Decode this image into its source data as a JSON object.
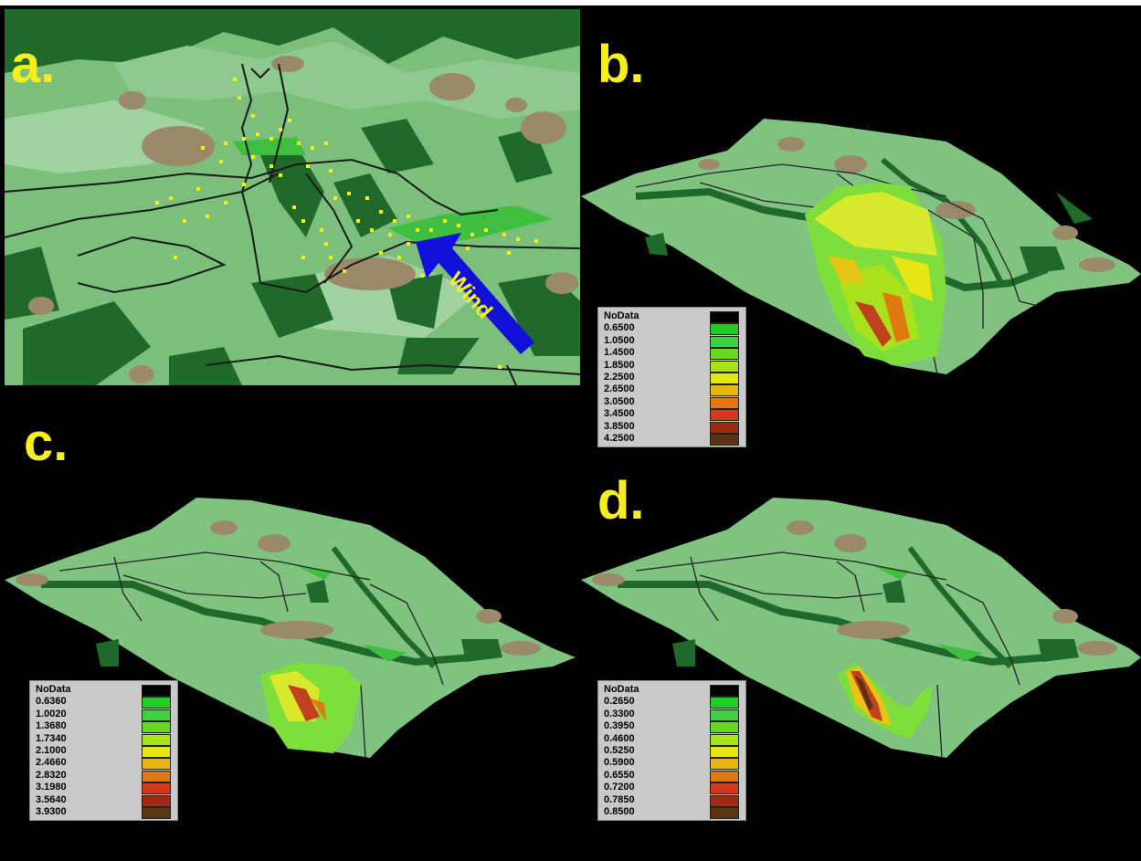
{
  "panels": {
    "a": {
      "label": "a."
    },
    "b": {
      "label": "b."
    },
    "c": {
      "label": "c."
    },
    "d": {
      "label": "d."
    }
  },
  "wind": {
    "label": "Wind",
    "arrow_color": "#1010d8"
  },
  "colors": {
    "background": "#000000",
    "terrain_light": "#8ec98e",
    "terrain_mid": "#6fb46f",
    "forest_dark": "#1f6a2a",
    "forest_bright": "#3fbf3f",
    "bare_brown": "#9a8a6a",
    "road": "#1a1a1a",
    "ignition_points": "#f4f20a",
    "legend_bg": "#c9c9c9"
  },
  "legends": {
    "b": {
      "items": [
        {
          "label": "NoData",
          "color": "#000000"
        },
        {
          "label": "0.6500",
          "color": "#22cc22"
        },
        {
          "label": "1.0500",
          "color": "#3fd03f"
        },
        {
          "label": "1.4500",
          "color": "#66d822"
        },
        {
          "label": "1.8500",
          "color": "#a8e21c"
        },
        {
          "label": "2.2500",
          "color": "#e6e614"
        },
        {
          "label": "2.6500",
          "color": "#e8b414"
        },
        {
          "label": "3.0500",
          "color": "#e07a10"
        },
        {
          "label": "3.4500",
          "color": "#d8381a"
        },
        {
          "label": "3.8500",
          "color": "#a02a14"
        },
        {
          "label": "4.2500",
          "color": "#5a3410"
        }
      ]
    },
    "c": {
      "items": [
        {
          "label": "NoData",
          "color": "#000000"
        },
        {
          "label": "0.6360",
          "color": "#22cc22"
        },
        {
          "label": "1.0020",
          "color": "#3fd03f"
        },
        {
          "label": "1.3680",
          "color": "#66d822"
        },
        {
          "label": "1.7340",
          "color": "#a8e21c"
        },
        {
          "label": "2.1000",
          "color": "#e6e614"
        },
        {
          "label": "2.4660",
          "color": "#e8b414"
        },
        {
          "label": "2.8320",
          "color": "#e07a10"
        },
        {
          "label": "3.1980",
          "color": "#d8381a"
        },
        {
          "label": "3.5640",
          "color": "#a02a14"
        },
        {
          "label": "3.9300",
          "color": "#5a3410"
        }
      ]
    },
    "d": {
      "items": [
        {
          "label": "NoData",
          "color": "#000000"
        },
        {
          "label": "0.2650",
          "color": "#22cc22"
        },
        {
          "label": "0.3300",
          "color": "#3fd03f"
        },
        {
          "label": "0.3950",
          "color": "#66d822"
        },
        {
          "label": "0.4600",
          "color": "#a8e21c"
        },
        {
          "label": "0.5250",
          "color": "#e6e614"
        },
        {
          "label": "0.5900",
          "color": "#e8b414"
        },
        {
          "label": "0.6550",
          "color": "#e07a10"
        },
        {
          "label": "0.7200",
          "color": "#d8381a"
        },
        {
          "label": "0.7850",
          "color": "#a02a14"
        },
        {
          "label": "0.8500",
          "color": "#5a3410"
        }
      ]
    }
  }
}
